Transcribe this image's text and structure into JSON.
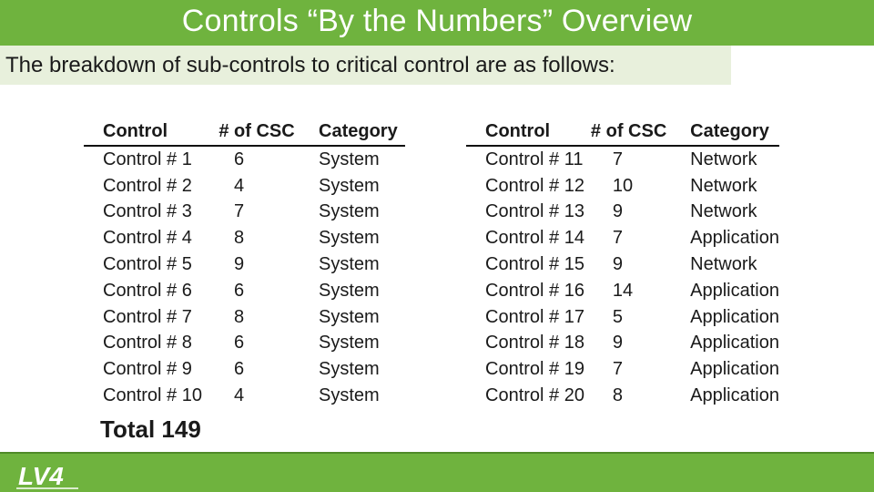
{
  "slide": {
    "title": "Controls “By the Numbers” Overview",
    "subtitle": "The breakdown of sub-controls to critical control are as follows:",
    "total": "Total 149",
    "logo_text": "LV4",
    "colors": {
      "accent": "#6fb33e",
      "band": "#e8f0dc"
    }
  },
  "table_left": {
    "headers": [
      "Control",
      "# of CSC",
      "Category"
    ],
    "rows": [
      [
        "Control # 1",
        "6",
        "System"
      ],
      [
        "Control # 2",
        "4",
        "System"
      ],
      [
        "Control # 3",
        "7",
        "System"
      ],
      [
        "Control # 4",
        "8",
        "System"
      ],
      [
        "Control # 5",
        "9",
        "System"
      ],
      [
        "Control # 6",
        "6",
        "System"
      ],
      [
        "Control # 7",
        "8",
        "System"
      ],
      [
        "Control # 8",
        "6",
        "System"
      ],
      [
        "Control # 9",
        "6",
        "System"
      ],
      [
        "Control # 10",
        "4",
        "System"
      ]
    ]
  },
  "table_right": {
    "headers": [
      "Control",
      "# of CSC",
      "Category"
    ],
    "rows": [
      [
        "Control # 11",
        "7",
        "Network"
      ],
      [
        "Control # 12",
        "10",
        "Network"
      ],
      [
        "Control # 13",
        "9",
        "Network"
      ],
      [
        "Control # 14",
        "7",
        "Application"
      ],
      [
        "Control # 15",
        "9",
        "Network"
      ],
      [
        "Control # 16",
        "14",
        "Application"
      ],
      [
        "Control # 17",
        "5",
        "Application"
      ],
      [
        "Control # 18",
        "9",
        "Application"
      ],
      [
        "Control # 19",
        "7",
        "Application"
      ],
      [
        "Control # 20",
        "8",
        "Application"
      ]
    ]
  }
}
